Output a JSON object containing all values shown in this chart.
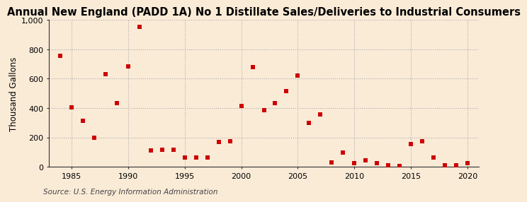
{
  "title": "Annual New England (PADD 1A) No 1 Distillate Sales/Deliveries to Industrial Consumers",
  "ylabel": "Thousand Gallons",
  "source": "Source: U.S. Energy Information Administration",
  "background_color": "#faebd7",
  "plot_background_color": "#faebd7",
  "marker_color": "#cc0000",
  "marker_size": 4,
  "marker_style": "s",
  "years": [
    1984,
    1985,
    1986,
    1987,
    1988,
    1989,
    1990,
    1991,
    1992,
    1993,
    1994,
    1995,
    1996,
    1997,
    1998,
    1999,
    2000,
    2001,
    2002,
    2003,
    2004,
    2005,
    2006,
    2007,
    2008,
    2009,
    2010,
    2011,
    2012,
    2013,
    2014,
    2015,
    2016,
    2017,
    2018,
    2019,
    2020
  ],
  "values": [
    755,
    405,
    315,
    200,
    630,
    435,
    685,
    955,
    110,
    115,
    115,
    65,
    65,
    65,
    170,
    175,
    415,
    680,
    385,
    435,
    515,
    620,
    300,
    355,
    30,
    100,
    25,
    45,
    25,
    10,
    5,
    155,
    175,
    65,
    10,
    10,
    25
  ],
  "xlim": [
    1983,
    2021
  ],
  "ylim": [
    0,
    1000
  ],
  "yticks": [
    0,
    200,
    400,
    600,
    800,
    1000
  ],
  "ytick_labels": [
    "0",
    "200",
    "400",
    "600",
    "800",
    "1,000"
  ],
  "xticks": [
    1985,
    1990,
    1995,
    2000,
    2005,
    2010,
    2015,
    2020
  ],
  "grid_color": "#aaaaaa",
  "grid_linestyle": ":",
  "title_fontsize": 10.5,
  "label_fontsize": 8.5,
  "tick_fontsize": 8,
  "source_fontsize": 7.5
}
